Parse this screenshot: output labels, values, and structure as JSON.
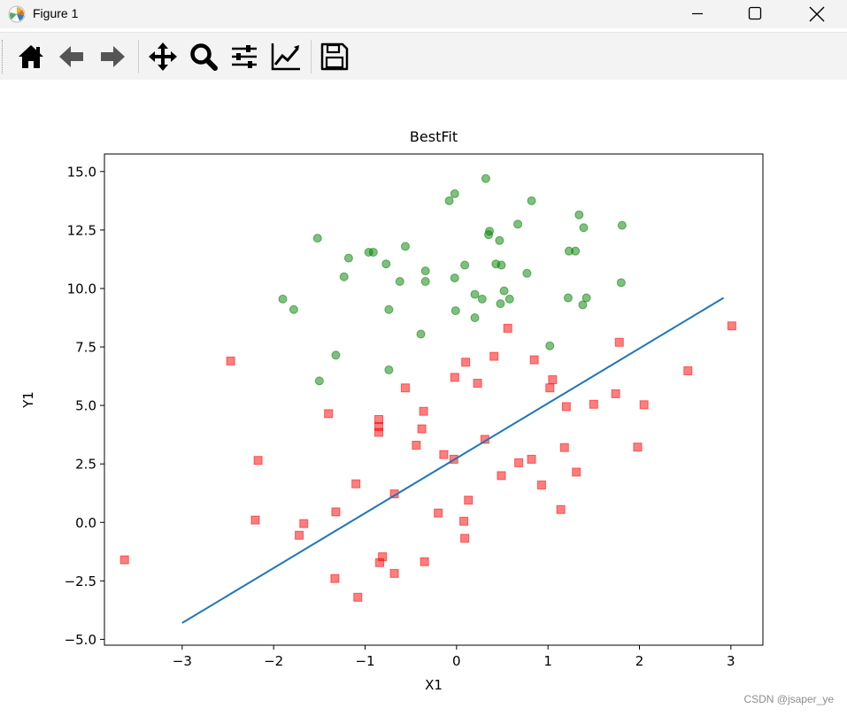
{
  "window": {
    "title": "Figure 1"
  },
  "toolbar": {
    "buttons": [
      {
        "name": "home-icon"
      },
      {
        "name": "back-arrow-icon"
      },
      {
        "name": "forward-arrow-icon"
      },
      {
        "name": "pan-move-icon"
      },
      {
        "name": "zoom-magnifier-icon"
      },
      {
        "name": "subplots-config-icon"
      },
      {
        "name": "edit-axis-icon"
      },
      {
        "name": "save-floppy-icon"
      }
    ]
  },
  "watermark": "CSDN @jsaper_ye",
  "chart_data": {
    "type": "scatter",
    "title": "BestFit",
    "xlabel": "X1",
    "ylabel": "Y1",
    "xlim": [
      -3.85,
      3.35
    ],
    "ylim": [
      -5.25,
      15.75
    ],
    "xticks": [
      -3,
      -2,
      -1,
      0,
      1,
      2,
      3
    ],
    "xtick_labels": [
      "−3",
      "−2",
      "−1",
      "0",
      "1",
      "2",
      "3"
    ],
    "yticks": [
      -5.0,
      -2.5,
      0.0,
      2.5,
      5.0,
      7.5,
      10.0,
      12.5,
      15.0
    ],
    "ytick_labels": [
      "−5.0",
      "−2.5",
      "0.0",
      "2.5",
      "5.0",
      "7.5",
      "10.0",
      "12.5",
      "15.0"
    ],
    "grid": false,
    "series": [
      {
        "marker": "square",
        "color": "#ff0000",
        "points": [
          [
            -3.63,
            -1.6
          ],
          [
            -2.47,
            6.9
          ],
          [
            -2.17,
            2.65
          ],
          [
            -2.2,
            0.1
          ],
          [
            -1.67,
            -0.05
          ],
          [
            -1.72,
            -0.55
          ],
          [
            -1.4,
            4.65
          ],
          [
            -1.33,
            -2.4
          ],
          [
            -1.32,
            0.45
          ],
          [
            -1.1,
            1.65
          ],
          [
            -1.08,
            -3.2
          ],
          [
            -0.85,
            4.4
          ],
          [
            -0.85,
            4.1
          ],
          [
            -0.85,
            3.85
          ],
          [
            -0.84,
            -1.72
          ],
          [
            -0.81,
            -1.47
          ],
          [
            -0.68,
            1.22
          ],
          [
            -0.68,
            -2.18
          ],
          [
            -0.56,
            5.75
          ],
          [
            -0.44,
            3.3
          ],
          [
            -0.38,
            4.0
          ],
          [
            -0.36,
            4.75
          ],
          [
            -0.35,
            -1.68
          ],
          [
            -0.2,
            0.4
          ],
          [
            -0.14,
            2.9
          ],
          [
            -0.03,
            2.7
          ],
          [
            -0.02,
            6.2
          ],
          [
            0.08,
            0.05
          ],
          [
            0.09,
            -0.68
          ],
          [
            0.1,
            6.85
          ],
          [
            0.13,
            0.95
          ],
          [
            0.23,
            5.95
          ],
          [
            0.31,
            3.55
          ],
          [
            0.41,
            7.1
          ],
          [
            0.49,
            2.0
          ],
          [
            0.56,
            8.3
          ],
          [
            0.68,
            2.55
          ],
          [
            0.82,
            2.7
          ],
          [
            0.85,
            6.95
          ],
          [
            0.93,
            1.6
          ],
          [
            1.02,
            5.75
          ],
          [
            1.05,
            6.1
          ],
          [
            1.14,
            0.55
          ],
          [
            1.18,
            3.2
          ],
          [
            1.2,
            4.95
          ],
          [
            1.31,
            2.15
          ],
          [
            1.5,
            5.05
          ],
          [
            1.74,
            5.5
          ],
          [
            1.78,
            7.7
          ],
          [
            1.98,
            3.22
          ],
          [
            2.05,
            5.03
          ],
          [
            2.53,
            6.48
          ],
          [
            3.01,
            8.4
          ]
        ]
      },
      {
        "marker": "circle",
        "color": "#008000",
        "points": [
          [
            -1.9,
            9.55
          ],
          [
            -1.78,
            9.1
          ],
          [
            -1.52,
            12.15
          ],
          [
            -1.5,
            6.05
          ],
          [
            -1.32,
            7.15
          ],
          [
            -1.23,
            10.5
          ],
          [
            -1.18,
            11.3
          ],
          [
            -0.96,
            11.55
          ],
          [
            -0.91,
            11.55
          ],
          [
            -0.77,
            11.05
          ],
          [
            -0.74,
            9.1
          ],
          [
            -0.74,
            6.52
          ],
          [
            -0.62,
            10.3
          ],
          [
            -0.56,
            11.8
          ],
          [
            -0.39,
            8.05
          ],
          [
            -0.34,
            10.75
          ],
          [
            -0.34,
            10.3
          ],
          [
            -0.08,
            13.75
          ],
          [
            -0.02,
            14.05
          ],
          [
            -0.02,
            10.45
          ],
          [
            -0.01,
            9.05
          ],
          [
            0.09,
            11.0
          ],
          [
            0.2,
            8.75
          ],
          [
            0.2,
            9.75
          ],
          [
            0.28,
            9.55
          ],
          [
            0.32,
            14.7
          ],
          [
            0.35,
            12.3
          ],
          [
            0.36,
            12.45
          ],
          [
            0.43,
            11.05
          ],
          [
            0.47,
            12.05
          ],
          [
            0.48,
            9.35
          ],
          [
            0.49,
            11.0
          ],
          [
            0.52,
            9.9
          ],
          [
            0.58,
            9.55
          ],
          [
            0.67,
            12.75
          ],
          [
            0.77,
            10.65
          ],
          [
            0.82,
            13.75
          ],
          [
            1.02,
            7.55
          ],
          [
            1.22,
            9.6
          ],
          [
            1.23,
            11.6
          ],
          [
            1.3,
            11.6
          ],
          [
            1.34,
            13.15
          ],
          [
            1.38,
            9.3
          ],
          [
            1.39,
            12.6
          ],
          [
            1.42,
            9.6
          ],
          [
            1.8,
            10.25
          ],
          [
            1.81,
            12.7
          ]
        ]
      },
      {
        "type": "line",
        "color": "#1f77b4",
        "points": [
          [
            -3.0,
            -4.3
          ],
          [
            2.92,
            9.6
          ]
        ]
      }
    ]
  }
}
